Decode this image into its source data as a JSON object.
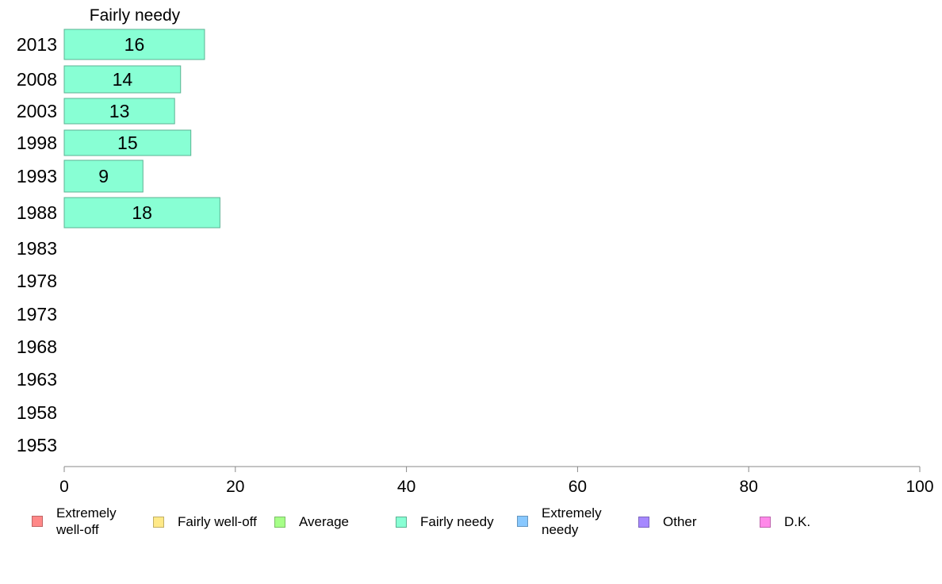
{
  "chart_data": {
    "type": "bar",
    "orientation": "horizontal",
    "title": "Fairly needy",
    "categories": [
      "2013",
      "2008",
      "2003",
      "1998",
      "1993",
      "1988",
      "1983",
      "1978",
      "1973",
      "1968",
      "1963",
      "1958",
      "1953"
    ],
    "series": [
      {
        "name": "Fairly needy",
        "values": [
          16.4,
          13.6,
          12.9,
          14.8,
          9.2,
          18.2,
          null,
          null,
          null,
          null,
          null,
          null,
          null
        ],
        "labels": [
          "16",
          "14",
          "13",
          "15",
          "9",
          "18",
          "",
          "",
          "",
          "",
          "",
          "",
          ""
        ],
        "color": "#88ffd4",
        "stroke": "#5bb393"
      }
    ],
    "xlim": [
      0,
      100
    ],
    "xticks": [
      "0",
      "20",
      "40",
      "60",
      "80",
      "100"
    ],
    "grid": false,
    "legend_position": "bottom",
    "legend": [
      {
        "label": "Extremely\nwell-off",
        "color": "#ff8888",
        "stroke": "#c06565"
      },
      {
        "label": "Fairly well-off",
        "color": "#ffe988",
        "stroke": "#c0ae65"
      },
      {
        "label": "Average",
        "color": "#a6ff88",
        "stroke": "#7cbf66"
      },
      {
        "label": "Fairly needy",
        "color": "#88ffd4",
        "stroke": "#5bb393"
      },
      {
        "label": "Extremely\nneedy",
        "color": "#88c8ff",
        "stroke": "#6696bf"
      },
      {
        "label": "Other",
        "color": "#a688ff",
        "stroke": "#7c66bf"
      },
      {
        "label": "D.K.",
        "color": "#ff88e9",
        "stroke": "#bf66ae"
      }
    ]
  }
}
